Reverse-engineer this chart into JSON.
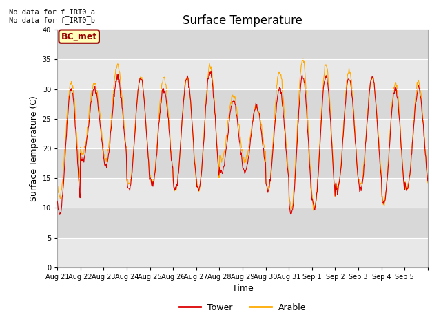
{
  "title": "Surface Temperature",
  "xlabel": "Time",
  "ylabel": "Surface Temperature (C)",
  "ylim": [
    0,
    40
  ],
  "yticks": [
    0,
    5,
    10,
    15,
    20,
    25,
    30,
    35,
    40
  ],
  "annotation_text": "No data for f_IRT0_a\nNo data for f_IRT0_b",
  "label_text": "BC_met",
  "label_bg": "#ffffbb",
  "label_fg": "#990000",
  "tower_color": "#dd0000",
  "arable_color": "#ffaa00",
  "bg_color_light": "#e8e8e8",
  "bg_color_dark": "#d8d8d8",
  "figsize": [
    6.4,
    4.8
  ],
  "dpi": 100,
  "tick_labels": [
    "Aug 21",
    "Aug 22",
    "Aug 23",
    "Aug 24",
    "Aug 25",
    "Aug 26",
    "Aug 27",
    "Aug 28",
    "Aug 29",
    "Aug 30",
    "Aug 31",
    "Sep 1",
    "Sep 2",
    "Sep 3",
    "Sep 4",
    "Sep 5"
  ],
  "day_peaks_tower": [
    30,
    30,
    32,
    32,
    30,
    32,
    33,
    28,
    27,
    30,
    32,
    32,
    32,
    32,
    30,
    30
  ],
  "day_troughs_tower": [
    9,
    18,
    17,
    13,
    14,
    13,
    13,
    16,
    16,
    13,
    9,
    10,
    13,
    13,
    11,
    13
  ],
  "day_peaks_arable": [
    31,
    31,
    34,
    32,
    32,
    32,
    34,
    29,
    27,
    33,
    35,
    34,
    33,
    32,
    31,
    31
  ],
  "day_troughs_arable": [
    12,
    19,
    18,
    14,
    14,
    13,
    13,
    18,
    18,
    13,
    10,
    10,
    13,
    14,
    11,
    13
  ]
}
